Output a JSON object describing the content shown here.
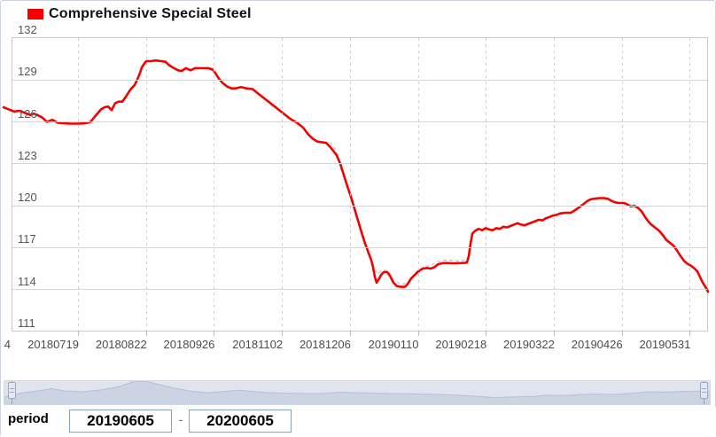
{
  "legend": {
    "label": "Comprehensive Special Steel",
    "color": "#f40000"
  },
  "period": {
    "label": "period",
    "start": "20190605",
    "separator": "-",
    "end": "20200605"
  },
  "colors": {
    "line": "#f40000",
    "shadow_line": "#b9bec7",
    "grid": "#d6d6d6",
    "axis_text": "#555555",
    "nav_fill": "#ccd4e3",
    "nav_stroke": "#b6c0d2",
    "nav_bg": "#dfe4ee"
  },
  "chart_data": {
    "type": "line",
    "title": "Comprehensive Special Steel",
    "xlabel": "",
    "ylabel": "",
    "ylim": [
      111,
      132
    ],
    "y_ticks": [
      132,
      129,
      126,
      123,
      120,
      117,
      114,
      111
    ],
    "x_ticks": [
      "4",
      "20180719",
      "20180822",
      "20180926",
      "20181102",
      "20181206",
      "20190110",
      "20190218",
      "20190322",
      "20190426",
      "20190531"
    ],
    "grid": "on",
    "legend_position": "top-left",
    "series": [
      {
        "name": "Comprehensive Special Steel",
        "color": "#f40000",
        "points": [
          [
            -10,
            127.05
          ],
          [
            -4,
            126.9
          ],
          [
            2,
            126.75
          ],
          [
            8,
            126.8
          ],
          [
            14,
            126.65
          ],
          [
            20,
            126.5
          ],
          [
            24,
            126.6
          ],
          [
            28,
            126.5
          ],
          [
            34,
            126.3
          ],
          [
            39,
            126.0
          ],
          [
            45,
            126.15
          ],
          [
            51,
            125.95
          ],
          [
            58,
            125.9
          ],
          [
            66,
            125.88
          ],
          [
            74,
            125.88
          ],
          [
            82,
            125.9
          ],
          [
            88,
            126.0
          ],
          [
            92,
            126.3
          ],
          [
            96,
            126.6
          ],
          [
            100,
            126.9
          ],
          [
            104,
            127.05
          ],
          [
            108,
            127.1
          ],
          [
            112,
            126.85
          ],
          [
            116,
            127.35
          ],
          [
            120,
            127.45
          ],
          [
            124,
            127.45
          ],
          [
            128,
            127.8
          ],
          [
            133,
            128.3
          ],
          [
            138,
            128.65
          ],
          [
            141,
            129.05
          ],
          [
            144,
            129.5
          ],
          [
            146,
            129.9
          ],
          [
            149,
            130.2
          ],
          [
            151,
            130.35
          ],
          [
            156,
            130.35
          ],
          [
            162,
            130.4
          ],
          [
            168,
            130.35
          ],
          [
            173,
            130.3
          ],
          [
            176,
            130.1
          ],
          [
            181,
            129.9
          ],
          [
            187,
            129.7
          ],
          [
            191,
            129.65
          ],
          [
            196,
            129.85
          ],
          [
            201,
            129.7
          ],
          [
            206,
            129.85
          ],
          [
            214,
            129.85
          ],
          [
            221,
            129.85
          ],
          [
            226,
            129.75
          ],
          [
            229,
            129.5
          ],
          [
            233,
            129.1
          ],
          [
            237,
            128.8
          ],
          [
            242,
            128.55
          ],
          [
            247,
            128.4
          ],
          [
            252,
            128.4
          ],
          [
            258,
            128.5
          ],
          [
            264,
            128.4
          ],
          [
            271,
            128.35
          ],
          [
            276,
            128.1
          ],
          [
            286,
            127.6
          ],
          [
            296,
            127.1
          ],
          [
            306,
            126.6
          ],
          [
            314,
            126.2
          ],
          [
            321,
            125.95
          ],
          [
            328,
            125.6
          ],
          [
            334,
            125.1
          ],
          [
            339,
            124.8
          ],
          [
            344,
            124.6
          ],
          [
            354,
            124.5
          ],
          [
            358,
            124.25
          ],
          [
            362,
            123.95
          ],
          [
            366,
            123.6
          ],
          [
            370,
            123.0
          ],
          [
            374,
            122.2
          ],
          [
            378,
            121.4
          ],
          [
            382,
            120.65
          ],
          [
            386,
            119.8
          ],
          [
            390,
            118.95
          ],
          [
            394,
            118.1
          ],
          [
            398,
            117.3
          ],
          [
            402,
            116.6
          ],
          [
            405,
            116.1
          ],
          [
            407,
            115.6
          ],
          [
            409,
            114.9
          ],
          [
            411,
            114.5
          ],
          [
            414,
            114.8
          ],
          [
            416,
            115.05
          ],
          [
            419,
            115.25
          ],
          [
            423,
            115.25
          ],
          [
            426,
            115.0
          ],
          [
            430,
            114.5
          ],
          [
            434,
            114.25
          ],
          [
            438,
            114.2
          ],
          [
            443,
            114.2
          ],
          [
            446,
            114.4
          ],
          [
            450,
            114.8
          ],
          [
            454,
            115.05
          ],
          [
            458,
            115.3
          ],
          [
            463,
            115.5
          ],
          [
            468,
            115.55
          ],
          [
            472,
            115.5
          ],
          [
            476,
            115.6
          ],
          [
            480,
            115.8
          ],
          [
            486,
            115.9
          ],
          [
            492,
            115.9
          ],
          [
            498,
            115.88
          ],
          [
            506,
            115.9
          ],
          [
            511,
            115.92
          ],
          [
            513,
            115.95
          ],
          [
            515,
            116.4
          ],
          [
            517,
            117.3
          ],
          [
            519,
            118.0
          ],
          [
            522,
            118.2
          ],
          [
            526,
            118.35
          ],
          [
            530,
            118.25
          ],
          [
            534,
            118.4
          ],
          [
            538,
            118.3
          ],
          [
            542,
            118.25
          ],
          [
            546,
            118.4
          ],
          [
            550,
            118.35
          ],
          [
            554,
            118.5
          ],
          [
            558,
            118.45
          ],
          [
            562,
            118.55
          ],
          [
            566,
            118.65
          ],
          [
            570,
            118.75
          ],
          [
            574,
            118.65
          ],
          [
            578,
            118.6
          ],
          [
            582,
            118.7
          ],
          [
            586,
            118.8
          ],
          [
            590,
            118.9
          ],
          [
            594,
            119.0
          ],
          [
            598,
            118.95
          ],
          [
            602,
            119.1
          ],
          [
            606,
            119.2
          ],
          [
            610,
            119.3
          ],
          [
            614,
            119.35
          ],
          [
            618,
            119.45
          ],
          [
            624,
            119.5
          ],
          [
            630,
            119.5
          ],
          [
            634,
            119.65
          ],
          [
            640,
            119.9
          ],
          [
            644,
            120.1
          ],
          [
            648,
            120.3
          ],
          [
            652,
            120.45
          ],
          [
            656,
            120.5
          ],
          [
            662,
            120.55
          ],
          [
            668,
            120.55
          ],
          [
            672,
            120.5
          ],
          [
            676,
            120.35
          ],
          [
            680,
            120.25
          ],
          [
            684,
            120.2
          ],
          [
            690,
            120.2
          ],
          [
            694,
            120.1
          ],
          [
            698,
            119.95
          ],
          [
            702,
            120.0
          ],
          [
            706,
            119.85
          ],
          [
            710,
            119.6
          ],
          [
            714,
            119.2
          ],
          [
            718,
            118.85
          ],
          [
            722,
            118.6
          ],
          [
            726,
            118.4
          ],
          [
            730,
            118.2
          ],
          [
            734,
            117.9
          ],
          [
            738,
            117.55
          ],
          [
            742,
            117.35
          ],
          [
            746,
            117.15
          ],
          [
            750,
            116.8
          ],
          [
            754,
            116.4
          ],
          [
            758,
            116.05
          ],
          [
            762,
            115.85
          ],
          [
            766,
            115.7
          ],
          [
            770,
            115.5
          ],
          [
            773,
            115.3
          ],
          [
            776,
            114.9
          ],
          [
            779,
            114.5
          ],
          [
            782,
            114.2
          ],
          [
            785,
            113.85
          ]
        ]
      },
      {
        "name": "shadow",
        "color": "#b9bec7",
        "dashed": true,
        "points": [
          [
            358,
            124.55
          ],
          [
            364,
            124.1
          ],
          [
            368,
            123.5
          ],
          [
            372,
            122.7
          ],
          [
            376,
            121.9
          ],
          [
            380,
            121.1
          ],
          [
            384,
            120.3
          ],
          [
            388,
            119.4
          ],
          [
            392,
            118.6
          ],
          [
            396,
            117.8
          ],
          [
            400,
            117.0
          ],
          [
            404,
            116.3
          ],
          [
            408,
            115.6
          ],
          [
            412,
            115.1
          ],
          [
            418,
            115.4
          ],
          [
            424,
            115.35
          ],
          [
            430,
            114.7
          ],
          [
            436,
            114.45
          ],
          [
            442,
            114.4
          ],
          [
            448,
            114.6
          ],
          [
            454,
            115.2
          ],
          [
            460,
            115.45
          ],
          [
            466,
            115.7
          ],
          [
            472,
            115.7
          ],
          [
            478,
            115.95
          ],
          [
            486,
            116.1
          ],
          [
            494,
            116.1
          ],
          [
            502,
            116.05
          ],
          [
            510,
            116.1
          ]
        ]
      }
    ],
    "navigator_profile": [
      [
        2,
        7.5
      ],
      [
        20,
        12
      ],
      [
        40,
        14.5
      ],
      [
        55,
        17
      ],
      [
        70,
        14.5
      ],
      [
        90,
        13.5
      ],
      [
        110,
        15.5
      ],
      [
        130,
        19
      ],
      [
        145,
        24
      ],
      [
        155,
        26
      ],
      [
        165,
        24.5
      ],
      [
        175,
        22
      ],
      [
        190,
        18.5
      ],
      [
        210,
        14.5
      ],
      [
        230,
        12.5
      ],
      [
        245,
        13.5
      ],
      [
        258,
        14.5
      ],
      [
        268,
        15.3
      ],
      [
        280,
        14
      ],
      [
        300,
        12.5
      ],
      [
        320,
        12
      ],
      [
        340,
        11.5
      ],
      [
        360,
        11.5
      ],
      [
        380,
        13
      ],
      [
        400,
        12.5
      ],
      [
        420,
        12
      ],
      [
        440,
        11.5
      ],
      [
        460,
        11.2
      ],
      [
        480,
        10.9
      ],
      [
        500,
        10.2
      ],
      [
        520,
        9.3
      ],
      [
        540,
        8.2
      ],
      [
        555,
        6.7
      ],
      [
        565,
        7.2
      ],
      [
        580,
        7.7
      ],
      [
        600,
        8.3
      ],
      [
        615,
        9.7
      ],
      [
        625,
        9.3
      ],
      [
        640,
        9.5
      ],
      [
        655,
        10.6
      ],
      [
        668,
        11.1
      ],
      [
        680,
        10.5
      ],
      [
        695,
        10.9
      ],
      [
        710,
        11.9
      ],
      [
        725,
        13.1
      ],
      [
        735,
        13.5
      ],
      [
        748,
        13.1
      ],
      [
        760,
        13.5
      ],
      [
        775,
        14.1
      ],
      [
        788,
        14.1
      ],
      [
        798,
        13.6
      ],
      [
        806,
        12.7
      ]
    ]
  }
}
